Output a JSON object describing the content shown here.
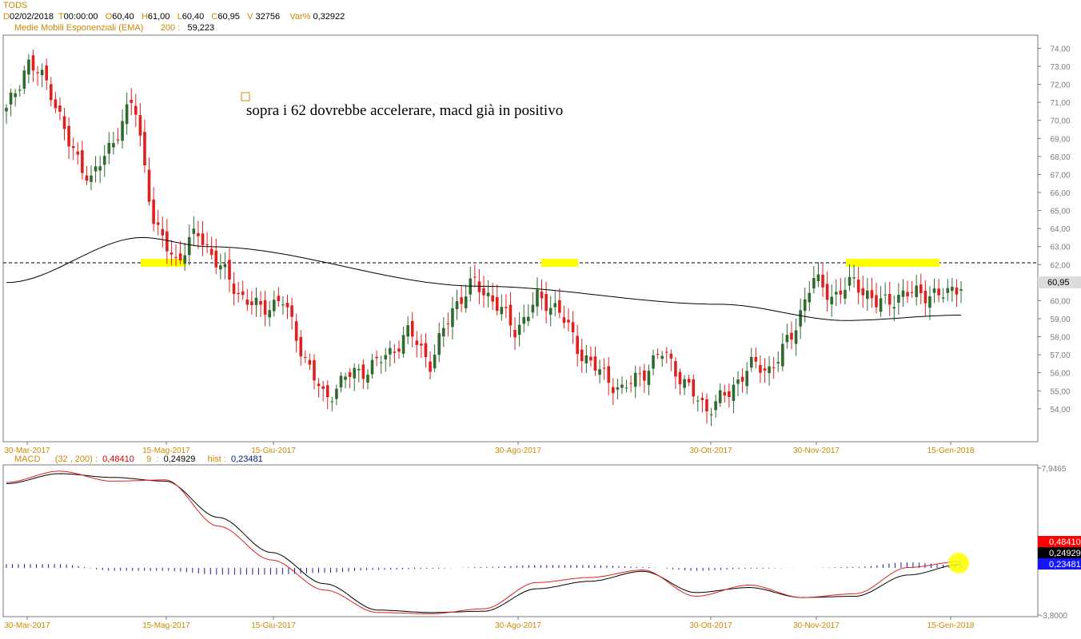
{
  "header": {
    "symbol": "TODS",
    "d_key": "D",
    "date": "02/02/2018",
    "t_key": "T",
    "time": "00:00:00",
    "o_key": "O",
    "open": "60,40",
    "h_key": "H",
    "high": "61,00",
    "l_key": "L",
    "low": "60,40",
    "c_key": "C",
    "close": "60,95",
    "v_key": "V",
    "volume": "32756",
    "var_key": "Var%",
    "var": "0,32922",
    "ema_label": "Medie Mobili Esponenziali (EMA)",
    "ema_period": "200",
    "ema_sep": ":",
    "ema_value": "59,223"
  },
  "annotation": "sopra i 62 dovrebbe accelerare, macd già in positivo",
  "last_price_label": "60,95",
  "macd_header": {
    "label": "MACD",
    "params": "(32 , 200)",
    "sep1": ":",
    "macd_value": "0,48410",
    "signal_period": "9",
    "sep2": ":",
    "signal_value": "0,24929",
    "hist_label": "hist",
    "sep3": ":",
    "hist_value": "0,23481"
  },
  "macd_boxes": [
    "0,48410",
    "0,24929",
    "0,23481"
  ],
  "colors": {
    "up": "#2f6b2f",
    "down": "#e0201e",
    "ema": "#000000",
    "macd_line": "#e02020",
    "signal_line": "#000000",
    "hist": "#1a1aa0",
    "highlight": "#ffff00",
    "axis_text": "#c98a00"
  },
  "chart_data": [
    {
      "type": "candlestick",
      "title": "TODS",
      "ylim": [
        53,
        75
      ],
      "y_ticks": [
        "54,00",
        "55,00",
        "56,00",
        "57,00",
        "58,00",
        "59,00",
        "60,00",
        "61,00",
        "62,00",
        "63,00",
        "64,00",
        "65,00",
        "66,00",
        "67,00",
        "68,00",
        "69,00",
        "70,00",
        "71,00",
        "72,00",
        "73,00",
        "74,00"
      ],
      "x_ticks": [
        "30-Mar-2017",
        "15-Mag-2017",
        "15-Giu-2017",
        "30-Ago-2017",
        "30-Ott-2017",
        "30-Nov-2017",
        "15-Gen-2018"
      ],
      "reference_line": 62.1,
      "highlighted_zones": [
        "15-Mag-2017",
        "30-Ago-2017",
        "15-Gen-2018"
      ],
      "series": [
        {
          "name": "Medie Mobili Esponenziali (EMA) 200",
          "x_dates": [
            "30-Mar-2017",
            "15-Mag-2017",
            "15-Giu-2017",
            "30-Ago-2017",
            "30-Ott-2017",
            "30-Nov-2017",
            "15-Gen-2018"
          ],
          "values": [
            61.0,
            63.5,
            63.0,
            60.8,
            59.8,
            58.9,
            59.2
          ]
        }
      ],
      "close_path": [
        70.5,
        73.2,
        72.0,
        68.5,
        66.7,
        68.8,
        71.2,
        64.0,
        62.2,
        63.8,
        62.0,
        60.3,
        59.5,
        60.1,
        57.0,
        54.5,
        55.8,
        56.2,
        57.0,
        58.3,
        56.5,
        59.5,
        61.0,
        60.0,
        58.3,
        60.1,
        59.6,
        57.2,
        56.0,
        55.0,
        56.0,
        57.2,
        55.3,
        54.0,
        54.8,
        56.4,
        56.2,
        58.0,
        61.2,
        60.2,
        61.1,
        59.8,
        60.2,
        60.5,
        60.2,
        60.95
      ]
    },
    {
      "type": "line",
      "title": "MACD",
      "ylim": [
        -3.8,
        7.9465
      ],
      "y_ticks": [
        "7,9465",
        "-3,8000"
      ],
      "x_ticks": [
        "30-Mar-2017",
        "15-Mag-2017",
        "15-Giu-2017",
        "30-Ago-2017",
        "30-Ott-2017",
        "30-Nov-2017",
        "15-Gen-2018"
      ],
      "series": [
        {
          "name": "MACD (32 , 200)",
          "values": [
            6.8,
            7.7,
            6.9,
            7.0,
            3.3,
            0.6,
            -1.8,
            -3.6,
            -3.7,
            -3.3,
            -1.2,
            -0.8,
            -0.2,
            -2.3,
            -1.4,
            -2.4,
            -2.1,
            0.0,
            0.4841
          ]
        },
        {
          "name": "9",
          "values": [
            6.7,
            7.5,
            7.2,
            6.9,
            4.0,
            1.2,
            -1.3,
            -3.4,
            -3.6,
            -3.5,
            -1.7,
            -1.1,
            -0.3,
            -2.0,
            -1.6,
            -2.4,
            -2.3,
            -0.6,
            0.24929
          ]
        },
        {
          "name": "hist",
          "values": [
            0.4,
            0.4,
            -0.3,
            -0.3,
            -0.7,
            -0.7,
            -0.5,
            -0.2,
            -0.1,
            0.1,
            0.3,
            0.3,
            0.1,
            -0.3,
            -0.1,
            0.0,
            0.1,
            0.6,
            0.23481
          ]
        }
      ]
    }
  ]
}
